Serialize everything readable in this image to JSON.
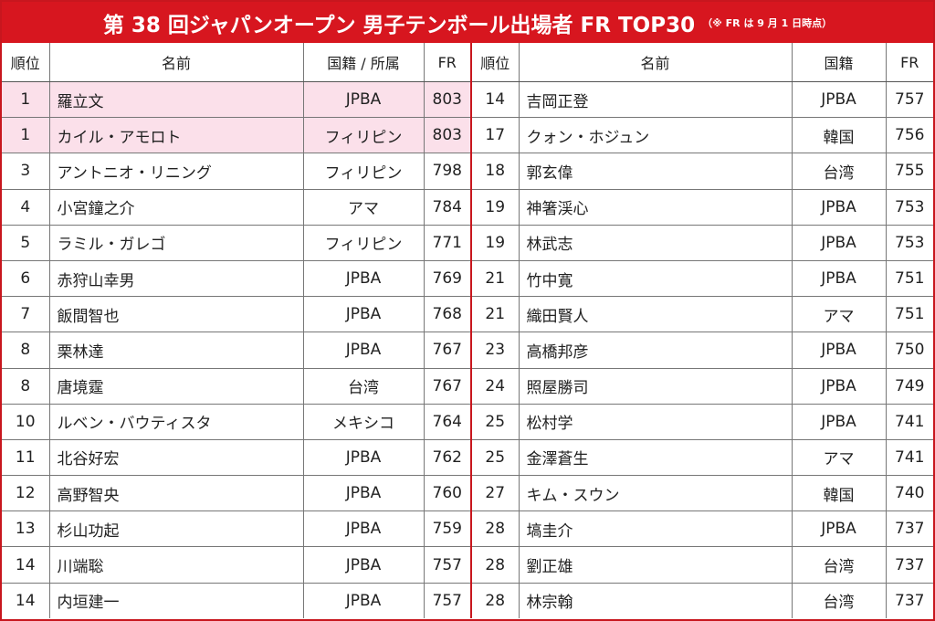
{
  "title": {
    "main": "第 38 回ジャパンオープン 男子テンボール出場者 FR TOP30",
    "note": "（※ FR は 9 月 1 日時点）"
  },
  "left_headers": {
    "rank": "順位",
    "name": "名前",
    "affiliation": "国籍 / 所属",
    "fr": "FR"
  },
  "right_headers": {
    "rank": "順位",
    "name": "名前",
    "affiliation": "国籍",
    "fr": "FR"
  },
  "colors": {
    "title_bg": "#d7161f",
    "highlight": "#fbe0ea",
    "border_accent": "#c8161e"
  },
  "rows": [
    {
      "left": {
        "rank": "1",
        "name": "羅立文",
        "aff": "JPBA",
        "fr": "803"
      },
      "right": {
        "rank": "14",
        "name": "吉岡正登",
        "aff": "JPBA",
        "fr": "757"
      }
    },
    {
      "left": {
        "rank": "1",
        "name": "カイル・アモロト",
        "aff": "フィリピン",
        "fr": "803"
      },
      "right": {
        "rank": "17",
        "name": "クォン・ホジュン",
        "aff": "韓国",
        "fr": "756"
      }
    },
    {
      "left": {
        "rank": "3",
        "name": "アントニオ・リニング",
        "aff": "フィリピン",
        "fr": "798"
      },
      "right": {
        "rank": "18",
        "name": "郭玄偉",
        "aff": "台湾",
        "fr": "755"
      }
    },
    {
      "left": {
        "rank": "4",
        "name": "小宮鐘之介",
        "aff": "アマ",
        "fr": "784"
      },
      "right": {
        "rank": "19",
        "name": "神箸渓心",
        "aff": "JPBA",
        "fr": "753"
      }
    },
    {
      "left": {
        "rank": "5",
        "name": "ラミル・ガレゴ",
        "aff": "フィリピン",
        "fr": "771"
      },
      "right": {
        "rank": "19",
        "name": "林武志",
        "aff": "JPBA",
        "fr": "753"
      }
    },
    {
      "left": {
        "rank": "6",
        "name": "赤狩山幸男",
        "aff": "JPBA",
        "fr": "769"
      },
      "right": {
        "rank": "21",
        "name": "竹中寛",
        "aff": "JPBA",
        "fr": "751"
      }
    },
    {
      "left": {
        "rank": "7",
        "name": "飯間智也",
        "aff": "JPBA",
        "fr": "768"
      },
      "right": {
        "rank": "21",
        "name": "織田賢人",
        "aff": "アマ",
        "fr": "751"
      }
    },
    {
      "left": {
        "rank": "8",
        "name": "栗林達",
        "aff": "JPBA",
        "fr": "767"
      },
      "right": {
        "rank": "23",
        "name": "高橋邦彦",
        "aff": "JPBA",
        "fr": "750"
      }
    },
    {
      "left": {
        "rank": "8",
        "name": "唐境霆",
        "aff": "台湾",
        "fr": "767"
      },
      "right": {
        "rank": "24",
        "name": "照屋勝司",
        "aff": "JPBA",
        "fr": "749"
      }
    },
    {
      "left": {
        "rank": "10",
        "name": "ルベン・バウティスタ",
        "aff": "メキシコ",
        "fr": "764"
      },
      "right": {
        "rank": "25",
        "name": "松村学",
        "aff": "JPBA",
        "fr": "741"
      }
    },
    {
      "left": {
        "rank": "11",
        "name": "北谷好宏",
        "aff": "JPBA",
        "fr": "762"
      },
      "right": {
        "rank": "25",
        "name": "金澤蒼生",
        "aff": "アマ",
        "fr": "741"
      }
    },
    {
      "left": {
        "rank": "12",
        "name": "高野智央",
        "aff": "JPBA",
        "fr": "760"
      },
      "right": {
        "rank": "27",
        "name": "キム・スウン",
        "aff": "韓国",
        "fr": "740"
      }
    },
    {
      "left": {
        "rank": "13",
        "name": "杉山功起",
        "aff": "JPBA",
        "fr": "759"
      },
      "right": {
        "rank": "28",
        "name": "塙圭介",
        "aff": "JPBA",
        "fr": "737"
      }
    },
    {
      "left": {
        "rank": "14",
        "name": "川端聡",
        "aff": "JPBA",
        "fr": "757"
      },
      "right": {
        "rank": "28",
        "name": "劉正雄",
        "aff": "台湾",
        "fr": "737"
      }
    },
    {
      "left": {
        "rank": "14",
        "name": "内垣建一",
        "aff": "JPBA",
        "fr": "757"
      },
      "right": {
        "rank": "28",
        "name": "林宗翰",
        "aff": "台湾",
        "fr": "737"
      }
    }
  ]
}
